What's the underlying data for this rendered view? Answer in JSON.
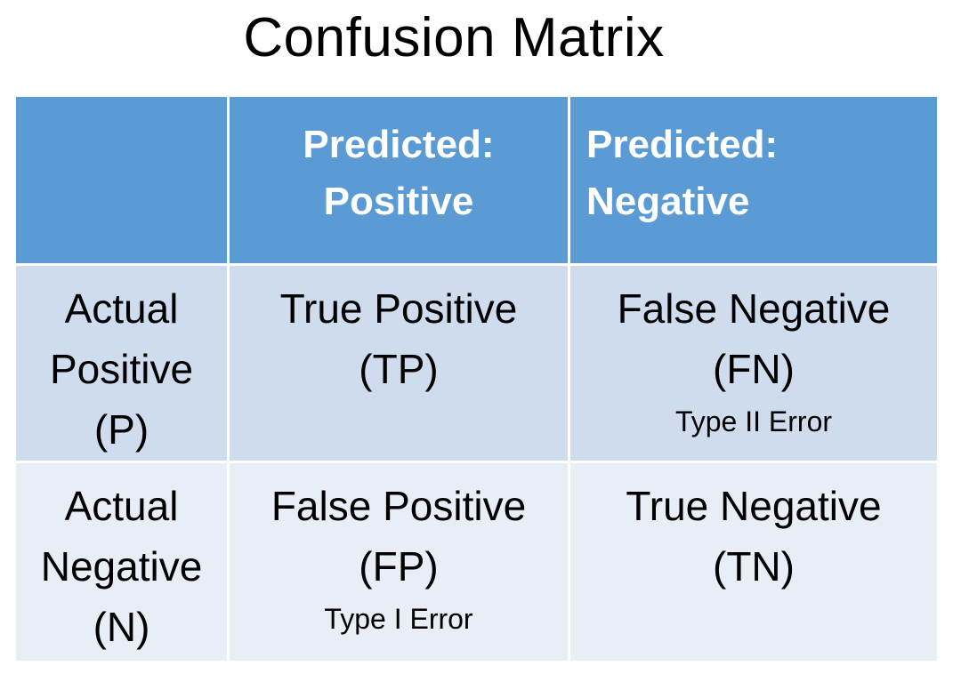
{
  "title": "Confusion Matrix",
  "header": {
    "predicted_positive": [
      "Predicted:",
      "Positive"
    ],
    "predicted_negative": [
      "Predicted:",
      "Negative"
    ]
  },
  "rows": [
    {
      "label": [
        "Actual",
        "Positive",
        "(P)"
      ],
      "cells": [
        {
          "name": "True Positive",
          "abbr": "(TP)",
          "note": ""
        },
        {
          "name": "False Negative",
          "abbr": "(FN)",
          "note": "Type II Error"
        }
      ]
    },
    {
      "label": [
        "Actual",
        "Negative",
        "(N)"
      ],
      "cells": [
        {
          "name": "False Positive",
          "abbr": "(FP)",
          "note": "Type I Error"
        },
        {
          "name": "True Negative",
          "abbr": "(TN)",
          "note": ""
        }
      ]
    }
  ],
  "colors": {
    "header": "#5b9bd5",
    "row_positive": "#cfdcee",
    "row_negative": "#e8edf6"
  }
}
